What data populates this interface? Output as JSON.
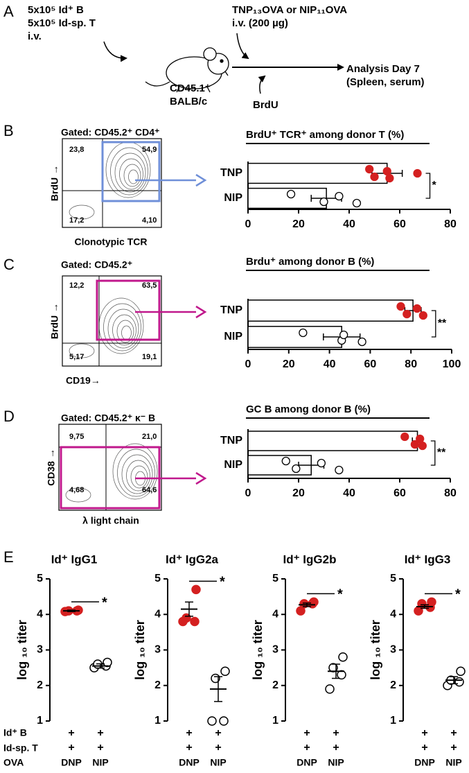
{
  "panel_a": {
    "letter": "A",
    "donor_lines": [
      "5x10⁵ Id⁺ B",
      "5x10⁵ Id-sp. T",
      "i.v."
    ],
    "immunization": [
      "TNP₁₃OVA or NIP₁₁OVA",
      "i.v. (200 µg)"
    ],
    "host": [
      "CD45.1⁺",
      "BALB/c"
    ],
    "brdu": "BrdU",
    "analysis": [
      "Analysis Day 7",
      "(Spleen, serum)"
    ]
  },
  "flow_plots": [
    {
      "letter": "B",
      "gate": "Gated: CD45.2⁺ CD4⁺",
      "quadrants": [
        "23,8",
        "54,9",
        "17,2",
        "4,10"
      ],
      "y_label": "BrdU →",
      "x_label": "Clonotypic TCR",
      "gate_color": "#6f8fd8"
    },
    {
      "letter": "C",
      "gate": "Gated: CD45.2⁺",
      "quadrants": [
        "12,2",
        "63,5",
        "5,17",
        "19,1"
      ],
      "y_label": "BrdU →",
      "x_label": "CD19→",
      "gate_color": "#c0188c"
    },
    {
      "letter": "D",
      "gate": "Gated: CD45.2⁺ κ⁻ B",
      "quadrants": [
        "9,75",
        "21,0",
        "4,68",
        "64,6"
      ],
      "y_label": "CD38 →",
      "x_label": "λ light chain",
      "gate_color": "#c0188c"
    }
  ],
  "panel_e": {
    "letter": "E",
    "row_labels": [
      "Id⁺ B",
      "Id-sp. T",
      "OVA"
    ],
    "plus": "+"
  },
  "chart_data": [
    {
      "type": "bar",
      "title": "BrdU⁺ TCR⁺ among donor T (%)",
      "categories": [
        "TNP",
        "NIP"
      ],
      "values": [
        55,
        31
      ],
      "errors": [
        6,
        6
      ],
      "points": [
        [
          48,
          50,
          55,
          56,
          67
        ],
        [
          17,
          30,
          36,
          43
        ]
      ],
      "point_colors": [
        "#d42020",
        "#ffffff"
      ],
      "bar_color": "#ffffff",
      "xlim": [
        0,
        80
      ],
      "xticks": [
        0,
        20,
        40,
        60,
        80
      ],
      "significance": "*"
    },
    {
      "type": "bar",
      "title": "Brdu⁺ among donor B (%)",
      "categories": [
        "TNP",
        "NIP"
      ],
      "values": [
        81,
        46
      ],
      "errors": [
        4,
        9
      ],
      "points": [
        [
          75,
          78,
          83,
          86
        ],
        [
          27,
          46,
          47,
          56
        ]
      ],
      "point_colors": [
        "#d42020",
        "#ffffff"
      ],
      "bar_color": "#ffffff",
      "xlim": [
        0,
        100
      ],
      "xticks": [
        0,
        20,
        40,
        60,
        80,
        100
      ],
      "significance": "**"
    },
    {
      "type": "bar",
      "title": "GC B among donor B (%)",
      "categories": [
        "TNP",
        "NIP"
      ],
      "values": [
        67,
        25
      ],
      "errors": [
        2,
        5
      ],
      "points": [
        [
          62,
          66,
          68,
          69
        ],
        [
          15,
          19,
          29,
          36
        ]
      ],
      "point_colors": [
        "#d42020",
        "#ffffff"
      ],
      "bar_color": "#ffffff",
      "xlim": [
        0,
        80
      ],
      "xticks": [
        0,
        20,
        40,
        60,
        80
      ],
      "significance": "**"
    },
    {
      "type": "dot",
      "title": "Id⁺ IgG1",
      "y_label": "log ₁₀ titer",
      "categories": [
        "DNP",
        "NIP"
      ],
      "means": [
        4.1,
        2.55
      ],
      "errors": [
        0.02,
        0.06
      ],
      "points": [
        [
          4.08,
          4.1,
          4.1,
          4.12
        ],
        [
          2.5,
          2.55,
          2.6,
          2.65
        ]
      ],
      "point_colors": [
        "#d42020",
        "#ffffff"
      ],
      "ylim": [
        1,
        5
      ],
      "yticks": [
        1,
        2,
        3,
        4,
        5
      ],
      "significance": "*"
    },
    {
      "type": "dot",
      "title": "Id⁺ IgG2a",
      "y_label": "log ₁₀ titer",
      "categories": [
        "DNP",
        "NIP"
      ],
      "means": [
        4.15,
        1.9
      ],
      "errors": [
        0.2,
        0.35
      ],
      "points": [
        [
          3.8,
          3.8,
          3.9,
          4.7
        ],
        [
          1.0,
          1.0,
          2.2,
          2.4
        ]
      ],
      "point_colors": [
        "#d42020",
        "#ffffff"
      ],
      "ylim": [
        1,
        5
      ],
      "yticks": [
        1,
        2,
        3,
        4,
        5
      ],
      "significance": "*"
    },
    {
      "type": "dot",
      "title": "Id⁺ IgG2b",
      "y_label": "log ₁₀ titer",
      "categories": [
        "DNP",
        "NIP"
      ],
      "means": [
        4.27,
        2.4
      ],
      "errors": [
        0.05,
        0.2
      ],
      "points": [
        [
          4.1,
          4.3,
          4.3,
          4.35
        ],
        [
          1.9,
          2.3,
          2.5,
          2.8
        ]
      ],
      "point_colors": [
        "#d42020",
        "#ffffff"
      ],
      "ylim": [
        1,
        5
      ],
      "yticks": [
        1,
        2,
        3,
        4,
        5
      ],
      "significance": "*"
    },
    {
      "type": "dot",
      "title": "Id⁺ IgG3",
      "y_label": "log ₁₀ titer",
      "categories": [
        "DNP",
        "NIP"
      ],
      "means": [
        4.22,
        2.15
      ],
      "errors": [
        0.05,
        0.1
      ],
      "points": [
        [
          4.1,
          4.2,
          4.3,
          4.35
        ],
        [
          2.0,
          2.1,
          2.15,
          2.4
        ]
      ],
      "point_colors": [
        "#d42020",
        "#ffffff"
      ],
      "ylim": [
        1,
        5
      ],
      "yticks": [
        1,
        2,
        3,
        4,
        5
      ],
      "significance": "*"
    }
  ]
}
